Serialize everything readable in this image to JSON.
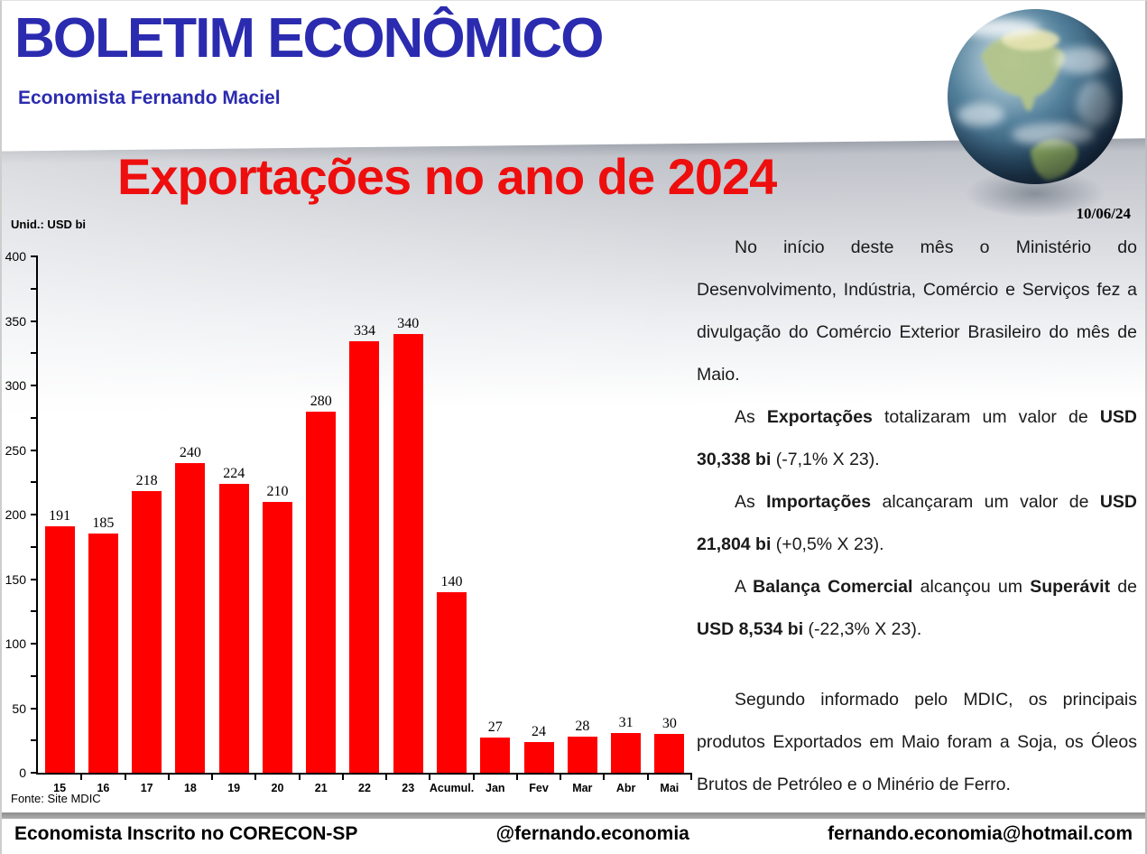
{
  "header": {
    "title": "BOLETIM ECONÔMICO",
    "subtitle": "Economista Fernando Maciel"
  },
  "date": "10/06/24",
  "images": {
    "globe": "earth-globe-3d"
  },
  "colors": {
    "header_blue": "#2b2bb0",
    "title_red": "#ee0e0e",
    "bar_red": "#ff0000",
    "floor_gray": "#bfc2c9"
  },
  "chart_data": {
    "type": "bar",
    "title": "Exportações no ano de 2024",
    "unit_label": "Unid.: USD bi",
    "source": "Fonte: Site MDIC",
    "categories": [
      "15",
      "16",
      "17",
      "18",
      "19",
      "20",
      "21",
      "22",
      "23",
      "Acumul.",
      "Jan",
      "Fev",
      "Mar",
      "Abr",
      "Mai"
    ],
    "values": [
      191,
      185,
      218,
      240,
      224,
      210,
      280,
      334,
      340,
      140,
      27,
      24,
      28,
      31,
      30
    ],
    "xlabel": "",
    "ylabel": "",
    "ylim": [
      0,
      400
    ],
    "ytick_major": 50,
    "ytick_minor": 25,
    "grid": false,
    "legend": "none",
    "bar_color": "#ff0000"
  },
  "article": {
    "paragraphs": [
      [
        {
          "t": "No início deste mês o Ministério do Desenvolvimento, Indústria, Comércio e Serviços fez a divulgação do Comércio Exterior Brasileiro do mês de Maio.",
          "b": false
        }
      ],
      [
        {
          "t": "As ",
          "b": false
        },
        {
          "t": "Exportações",
          "b": true
        },
        {
          "t": " totalizaram um valor de ",
          "b": false
        },
        {
          "t": "USD 30,338 bi",
          "b": true
        },
        {
          "t": " (-7,1% X 23).",
          "b": false
        }
      ],
      [
        {
          "t": "As ",
          "b": false
        },
        {
          "t": "Importações",
          "b": true
        },
        {
          "t": " alcançaram um valor de ",
          "b": false
        },
        {
          "t": "USD 21,804 bi",
          "b": true
        },
        {
          "t": " (+0,5% X 23).",
          "b": false
        }
      ],
      [
        {
          "t": "A ",
          "b": false
        },
        {
          "t": "Balança Comercial",
          "b": true
        },
        {
          "t": " alcançou um ",
          "b": false
        },
        {
          "t": "Superávit",
          "b": true
        },
        {
          "t": " de ",
          "b": false
        },
        {
          "t": "USD 8,534 bi",
          "b": true
        },
        {
          "t": " (-22,3% X 23).",
          "b": false
        }
      ],
      [
        {
          "t": "Segundo informado pelo MDIC, os principais produtos Exportados em Maio foram a Soja, os Óleos Brutos de Petróleo e o Minério de Ferro.",
          "b": false
        }
      ]
    ]
  },
  "footer": {
    "left": "Economista Inscrito no CORECON-SP",
    "center": "@fernando.economia",
    "right": "fernando.economia@hotmail.com"
  }
}
